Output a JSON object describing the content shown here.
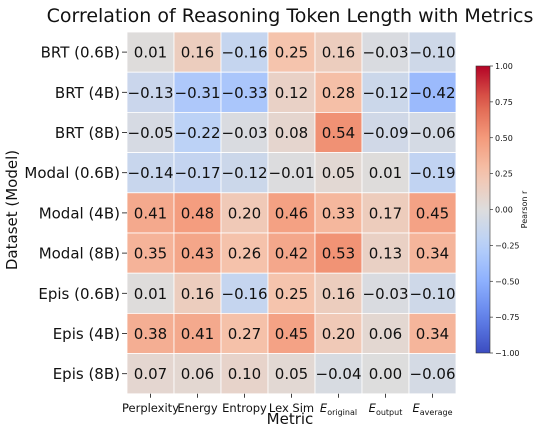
{
  "chart_data": {
    "type": "heatmap",
    "title": "Correlation of Reasoning Token Length with Metrics",
    "xlabel": "Metric",
    "ylabel": "Dataset (Model)",
    "rows": [
      "BRT (0.6B)",
      "BRT (4B)",
      "BRT (8B)",
      "Modal (0.6B)",
      "Modal (4B)",
      "Modal (8B)",
      "Epis (0.6B)",
      "Epis (4B)",
      "Epis (8B)"
    ],
    "columns": [
      {
        "label": "Perplexity",
        "base": "Perplexity",
        "sub": ""
      },
      {
        "label": "Energy",
        "base": "Energy",
        "sub": ""
      },
      {
        "label": "Entropy",
        "base": "Entropy",
        "sub": ""
      },
      {
        "label": "Lex Sim",
        "base": "Lex Sim",
        "sub": ""
      },
      {
        "label": "E_original",
        "base": "E",
        "sub": "original"
      },
      {
        "label": "E_output",
        "base": "E",
        "sub": "output"
      },
      {
        "label": "E_average",
        "base": "E",
        "sub": "average"
      }
    ],
    "values": [
      [
        0.01,
        0.16,
        -0.16,
        0.25,
        0.16,
        -0.03,
        -0.1
      ],
      [
        -0.13,
        -0.31,
        -0.33,
        0.12,
        0.28,
        -0.12,
        -0.42
      ],
      [
        -0.05,
        -0.22,
        -0.03,
        0.08,
        0.54,
        -0.09,
        -0.06
      ],
      [
        -0.14,
        -0.17,
        -0.12,
        -0.01,
        0.05,
        0.01,
        -0.19
      ],
      [
        0.41,
        0.48,
        0.2,
        0.46,
        0.33,
        0.17,
        0.45
      ],
      [
        0.35,
        0.43,
        0.26,
        0.42,
        0.53,
        0.13,
        0.34
      ],
      [
        0.01,
        0.16,
        -0.16,
        0.25,
        0.16,
        -0.03,
        -0.1
      ],
      [
        0.38,
        0.41,
        0.27,
        0.45,
        0.2,
        0.06,
        0.34
      ],
      [
        0.07,
        0.06,
        0.1,
        0.05,
        -0.04,
        0.0,
        -0.06
      ]
    ],
    "value_format": "2 decimals",
    "colormap": "coolwarm",
    "vmin": -1.0,
    "vmax": 1.0,
    "colorbar": {
      "label": "Pearson r",
      "ticks": [
        -1.0,
        -0.75,
        -0.5,
        -0.25,
        0.0,
        0.25,
        0.5,
        0.75,
        1.0
      ],
      "tick_labels": [
        "−1.00",
        "−0.75",
        "−0.50",
        "−0.25",
        "0.00",
        "0.25",
        "0.50",
        "0.75",
        "1.00"
      ]
    }
  }
}
